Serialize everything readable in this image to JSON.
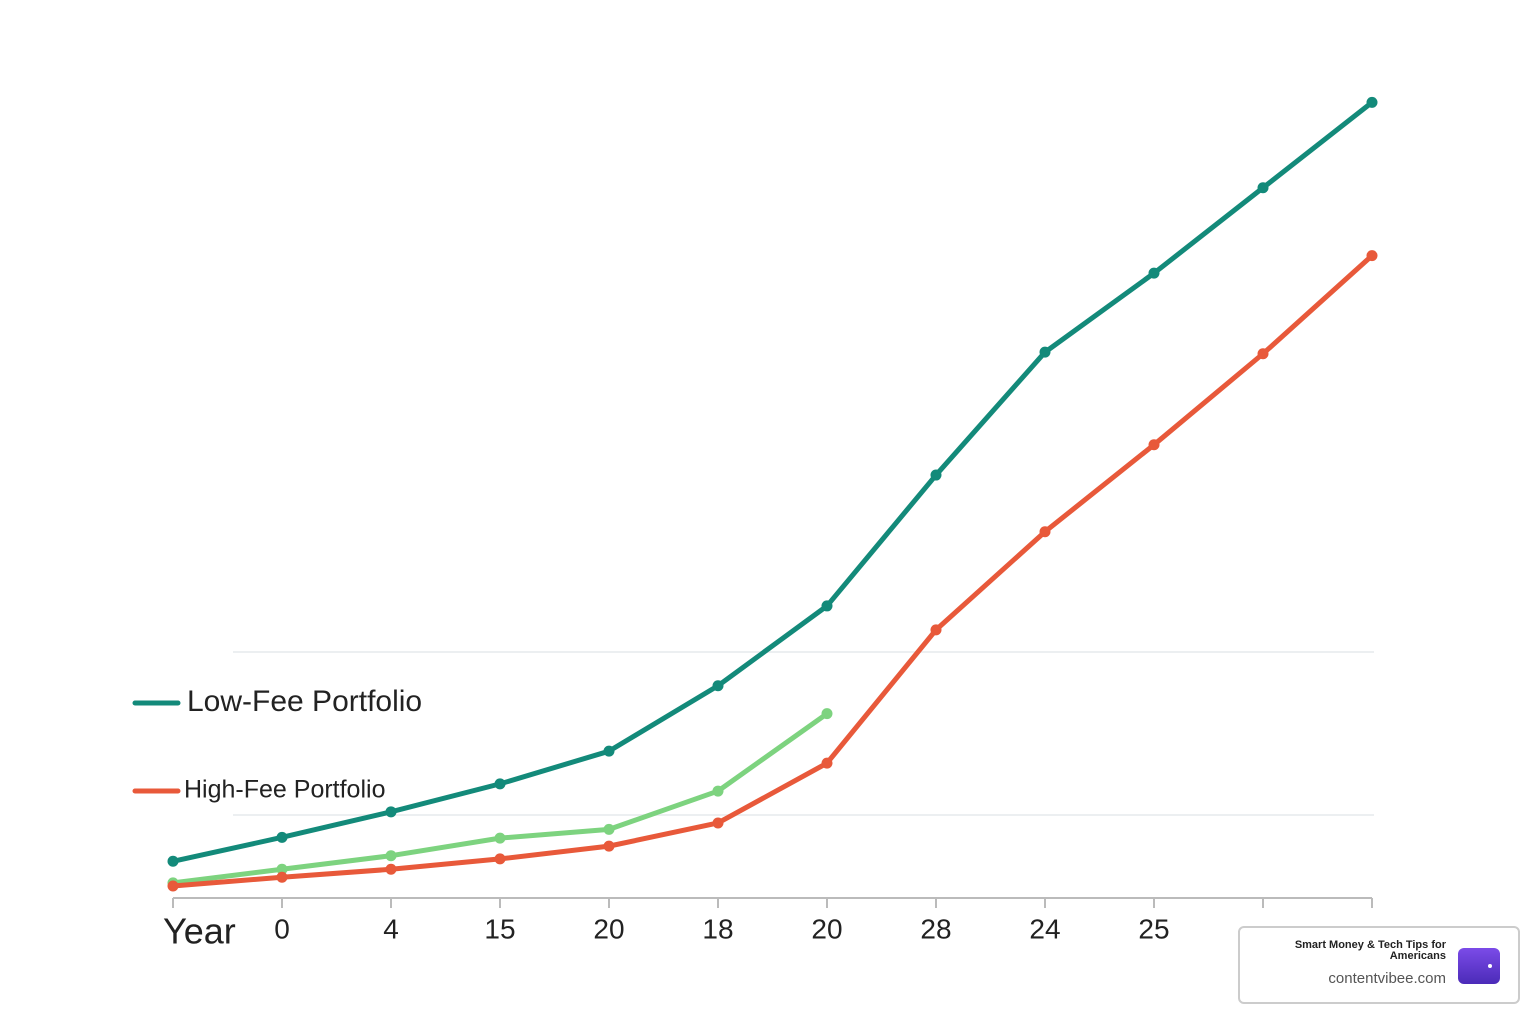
{
  "chart_data": {
    "type": "line",
    "categories": [
      "Year",
      "0",
      "4",
      "15",
      "20",
      "18",
      "20",
      "28",
      "24",
      "25",
      null,
      null
    ],
    "series": [
      {
        "name": "Low-Fee Portfolio",
        "color": "#138a7a",
        "values": [
          4.6,
          7.6,
          10.8,
          14.3,
          18.4,
          26.6,
          36.6,
          53.0,
          68.4,
          78.3,
          89.0,
          99.7
        ]
      },
      {
        "name": "High-Fee Portfolio",
        "color": "#e8593a",
        "values": [
          1.5,
          2.6,
          3.6,
          4.9,
          6.5,
          9.4,
          16.9,
          33.6,
          45.9,
          56.8,
          68.2,
          80.5
        ]
      },
      {
        "color": "#7dd37f",
        "values": [
          1.9,
          3.6,
          5.3,
          7.5,
          8.6,
          13.4,
          23.1,
          null,
          null,
          null,
          null,
          null
        ]
      }
    ],
    "ylim": [
      0,
      100
    ]
  },
  "badge": {
    "tagline": "Smart Money & Tech Tips for Americans",
    "site": "contentvibee.com"
  }
}
